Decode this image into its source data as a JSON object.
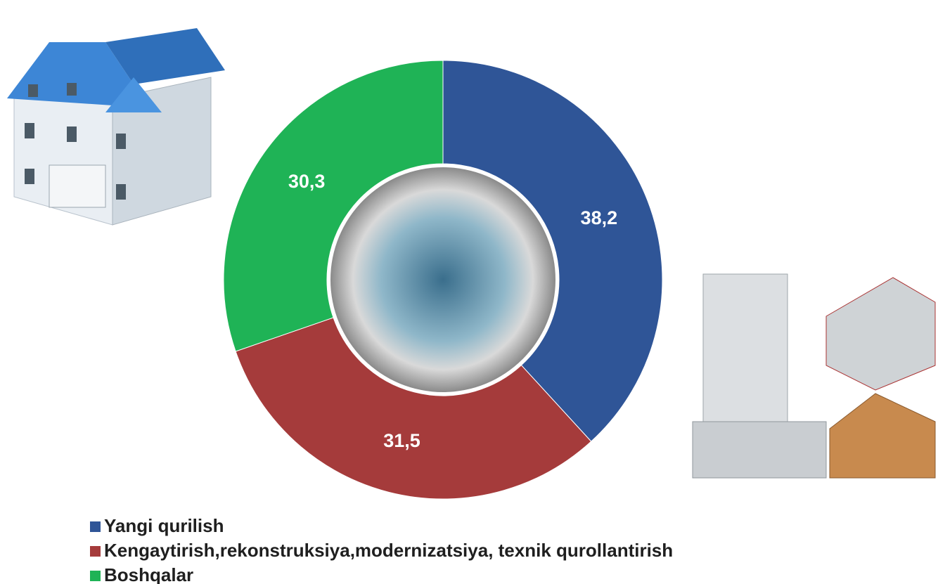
{
  "chart_data": {
    "type": "donut",
    "categories": [
      "Yangi qurilish",
      "Kengaytirish,rekonstruksiya,modernizatsiya, texnik qurollantirish",
      "Boshqalar"
    ],
    "values": [
      38.2,
      31.5,
      30.3
    ],
    "value_labels": [
      "38,2",
      "31,5",
      "30,3"
    ],
    "colors": [
      "#2f5597",
      "#a53b3b",
      "#1fb356"
    ]
  }
}
